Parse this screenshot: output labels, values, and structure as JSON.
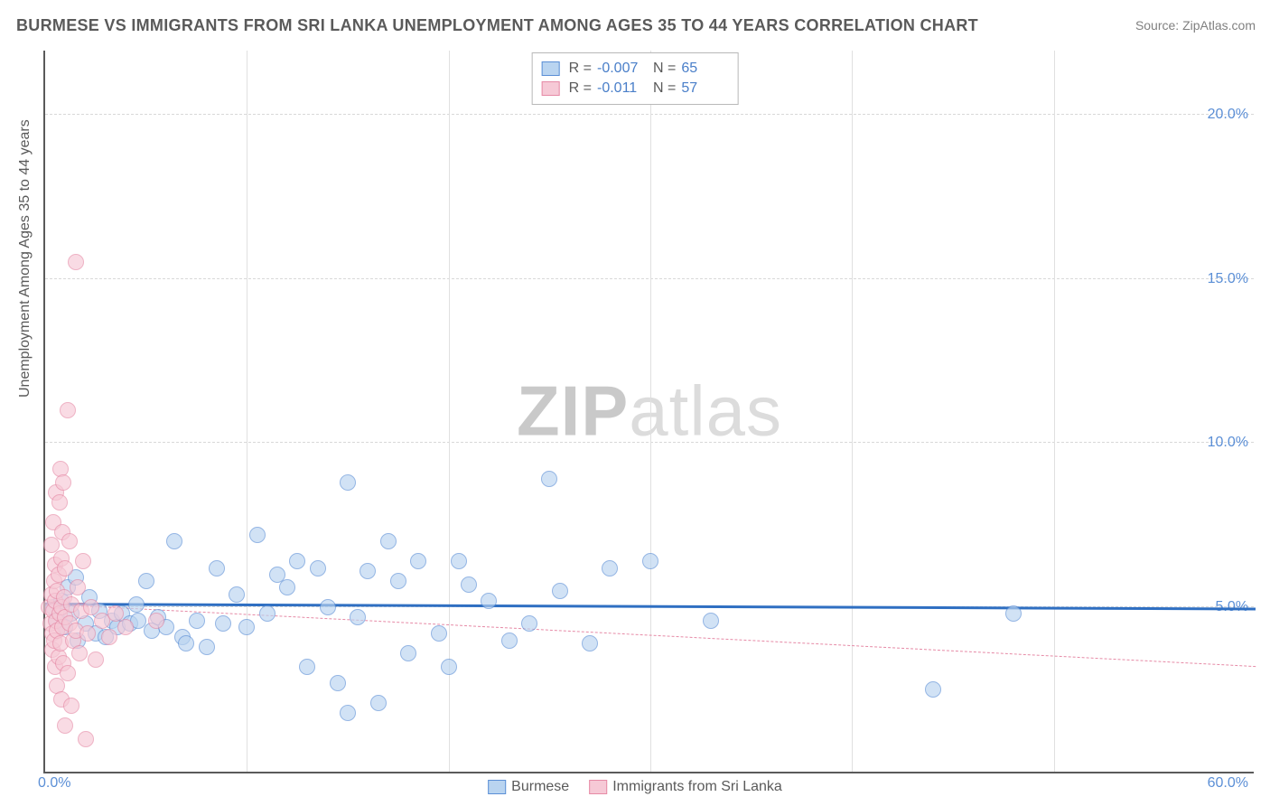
{
  "title": "BURMESE VS IMMIGRANTS FROM SRI LANKA UNEMPLOYMENT AMONG AGES 35 TO 44 YEARS CORRELATION CHART",
  "source_label": "Source: ZipAtlas.com",
  "y_axis_label": "Unemployment Among Ages 35 to 44 years",
  "watermark_a": "ZIP",
  "watermark_b": "atlas",
  "chart": {
    "type": "scatter",
    "xlim": [
      0,
      60
    ],
    "ylim": [
      0,
      22
    ],
    "x_origin_label": "0.0%",
    "x_max_label": "60.0%",
    "y_ticks": [
      5,
      10,
      15,
      20
    ],
    "y_tick_labels": [
      "5.0%",
      "10.0%",
      "15.0%",
      "20.0%"
    ],
    "x_grid": [
      10,
      20,
      30,
      40,
      50
    ],
    "background_color": "#ffffff",
    "grid_color": "#d8d8d8",
    "axis_color": "#5a5a5a",
    "tick_label_color": "#5b8fd6",
    "marker_radius": 9,
    "marker_stroke_width": 1.2,
    "series": [
      {
        "name": "Burmese",
        "fill": "#b9d4f0",
        "stroke": "#5b8fd6",
        "fill_opacity": 0.65,
        "r_value": "-0.007",
        "n_value": "65",
        "trend": {
          "y_at_xmin": 5.05,
          "y_at_xmax": 4.9,
          "stroke": "#2f6fc2",
          "width": 3,
          "dash": "none"
        },
        "points": [
          [
            0.4,
            5.0
          ],
          [
            0.6,
            4.6
          ],
          [
            0.8,
            5.2
          ],
          [
            1.0,
            4.4
          ],
          [
            1.1,
            5.6
          ],
          [
            1.3,
            4.8
          ],
          [
            1.5,
            5.9
          ],
          [
            1.6,
            4.0
          ],
          [
            2.0,
            4.5
          ],
          [
            2.2,
            5.3
          ],
          [
            2.5,
            4.2
          ],
          [
            2.7,
            4.9
          ],
          [
            3.0,
            4.1
          ],
          [
            3.3,
            4.6
          ],
          [
            3.6,
            4.4
          ],
          [
            3.8,
            4.8
          ],
          [
            4.2,
            4.5
          ],
          [
            4.5,
            5.1
          ],
          [
            4.6,
            4.6
          ],
          [
            5.0,
            5.8
          ],
          [
            5.3,
            4.3
          ],
          [
            5.6,
            4.7
          ],
          [
            6.0,
            4.4
          ],
          [
            6.4,
            7.0
          ],
          [
            6.8,
            4.1
          ],
          [
            7.0,
            3.9
          ],
          [
            7.5,
            4.6
          ],
          [
            8.0,
            3.8
          ],
          [
            8.5,
            6.2
          ],
          [
            8.8,
            4.5
          ],
          [
            9.5,
            5.4
          ],
          [
            10.0,
            4.4
          ],
          [
            10.5,
            7.2
          ],
          [
            11.0,
            4.8
          ],
          [
            11.5,
            6.0
          ],
          [
            12.0,
            5.6
          ],
          [
            12.5,
            6.4
          ],
          [
            13.0,
            3.2
          ],
          [
            13.5,
            6.2
          ],
          [
            14.0,
            5.0
          ],
          [
            14.5,
            2.7
          ],
          [
            15.0,
            8.8
          ],
          [
            15.0,
            1.8
          ],
          [
            15.5,
            4.7
          ],
          [
            16.0,
            6.1
          ],
          [
            16.5,
            2.1
          ],
          [
            17.0,
            7.0
          ],
          [
            17.5,
            5.8
          ],
          [
            18.0,
            3.6
          ],
          [
            18.5,
            6.4
          ],
          [
            19.5,
            4.2
          ],
          [
            20.0,
            3.2
          ],
          [
            20.5,
            6.4
          ],
          [
            21.0,
            5.7
          ],
          [
            22.0,
            5.2
          ],
          [
            23.0,
            4.0
          ],
          [
            24.0,
            4.5
          ],
          [
            25.0,
            8.9
          ],
          [
            25.5,
            5.5
          ],
          [
            27.0,
            3.9
          ],
          [
            28.0,
            6.2
          ],
          [
            30.0,
            6.4
          ],
          [
            33.0,
            4.6
          ],
          [
            44.0,
            2.5
          ],
          [
            48.0,
            4.8
          ]
        ]
      },
      {
        "name": "Immigrants from Sri Lanka",
        "fill": "#f6c9d6",
        "stroke": "#e68aa6",
        "fill_opacity": 0.65,
        "r_value": "-0.011",
        "n_value": "57",
        "trend": {
          "y_at_xmin": 5.1,
          "y_at_xmax": 3.2,
          "stroke": "#e68aa6",
          "width": 1.5,
          "dash": "5,5"
        },
        "points": [
          [
            0.2,
            5.0
          ],
          [
            0.25,
            4.5
          ],
          [
            0.3,
            5.4
          ],
          [
            0.3,
            6.9
          ],
          [
            0.35,
            3.7
          ],
          [
            0.35,
            4.2
          ],
          [
            0.4,
            4.9
          ],
          [
            0.4,
            7.6
          ],
          [
            0.45,
            5.8
          ],
          [
            0.45,
            4.0
          ],
          [
            0.5,
            3.2
          ],
          [
            0.5,
            5.2
          ],
          [
            0.5,
            6.3
          ],
          [
            0.55,
            8.5
          ],
          [
            0.55,
            4.6
          ],
          [
            0.6,
            2.6
          ],
          [
            0.6,
            4.3
          ],
          [
            0.6,
            5.5
          ],
          [
            0.65,
            3.5
          ],
          [
            0.65,
            6.0
          ],
          [
            0.7,
            4.8
          ],
          [
            0.7,
            8.2
          ],
          [
            0.75,
            9.2
          ],
          [
            0.75,
            3.9
          ],
          [
            0.8,
            2.2
          ],
          [
            0.8,
            5.0
          ],
          [
            0.8,
            6.5
          ],
          [
            0.85,
            4.4
          ],
          [
            0.85,
            7.3
          ],
          [
            0.9,
            8.8
          ],
          [
            0.9,
            3.3
          ],
          [
            0.95,
            5.3
          ],
          [
            1.0,
            1.4
          ],
          [
            1.0,
            4.7
          ],
          [
            1.0,
            6.2
          ],
          [
            1.1,
            11.0
          ],
          [
            1.1,
            3.0
          ],
          [
            1.2,
            4.5
          ],
          [
            1.2,
            7.0
          ],
          [
            1.3,
            2.0
          ],
          [
            1.3,
            5.1
          ],
          [
            1.4,
            4.0
          ],
          [
            1.5,
            15.5
          ],
          [
            1.5,
            4.3
          ],
          [
            1.6,
            5.6
          ],
          [
            1.7,
            3.6
          ],
          [
            1.8,
            4.9
          ],
          [
            1.9,
            6.4
          ],
          [
            2.0,
            1.0
          ],
          [
            2.1,
            4.2
          ],
          [
            2.3,
            5.0
          ],
          [
            2.5,
            3.4
          ],
          [
            2.8,
            4.6
          ],
          [
            3.2,
            4.1
          ],
          [
            3.5,
            4.8
          ],
          [
            4.0,
            4.4
          ],
          [
            5.5,
            4.6
          ]
        ]
      }
    ]
  },
  "legend_top": {
    "r_label": "R =",
    "n_label": "N ="
  },
  "legend_bottom": {
    "items": [
      "Burmese",
      "Immigrants from Sri Lanka"
    ]
  }
}
